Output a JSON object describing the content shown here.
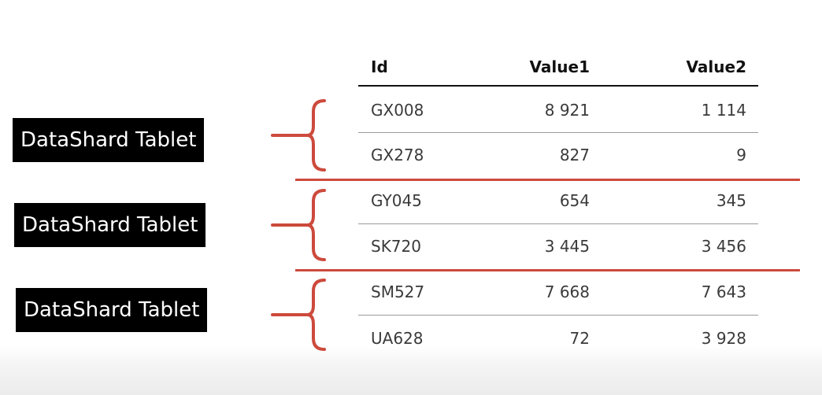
{
  "table": {
    "columns": [
      "Id",
      "Value1",
      "Value2"
    ],
    "rows": [
      {
        "id": "GX008",
        "value1": "8 921",
        "value2": "1 114"
      },
      {
        "id": "GX278",
        "value1": "827",
        "value2": "9"
      },
      {
        "id": "GY045",
        "value1": "654",
        "value2": "345"
      },
      {
        "id": "SK720",
        "value1": "3 445",
        "value2": "3 456"
      },
      {
        "id": "SM527",
        "value1": "7 668",
        "value2": "7 643"
      },
      {
        "id": "UA628",
        "value1": "72",
        "value2": "3 928"
      }
    ]
  },
  "shards": [
    {
      "label": "DataShard Tablet",
      "rows": [
        "GX008",
        "GX278"
      ]
    },
    {
      "label": "DataShard Tablet",
      "rows": [
        "GY045",
        "SK720"
      ]
    },
    {
      "label": "DataShard Tablet",
      "rows": [
        "SM527",
        "UA628"
      ]
    }
  ],
  "colors": {
    "accent": "#cc4a3c",
    "label_bg": "#000000",
    "label_text": "#ffffff",
    "header_rule": "#111111",
    "row_rule": "#9a9a9a"
  }
}
